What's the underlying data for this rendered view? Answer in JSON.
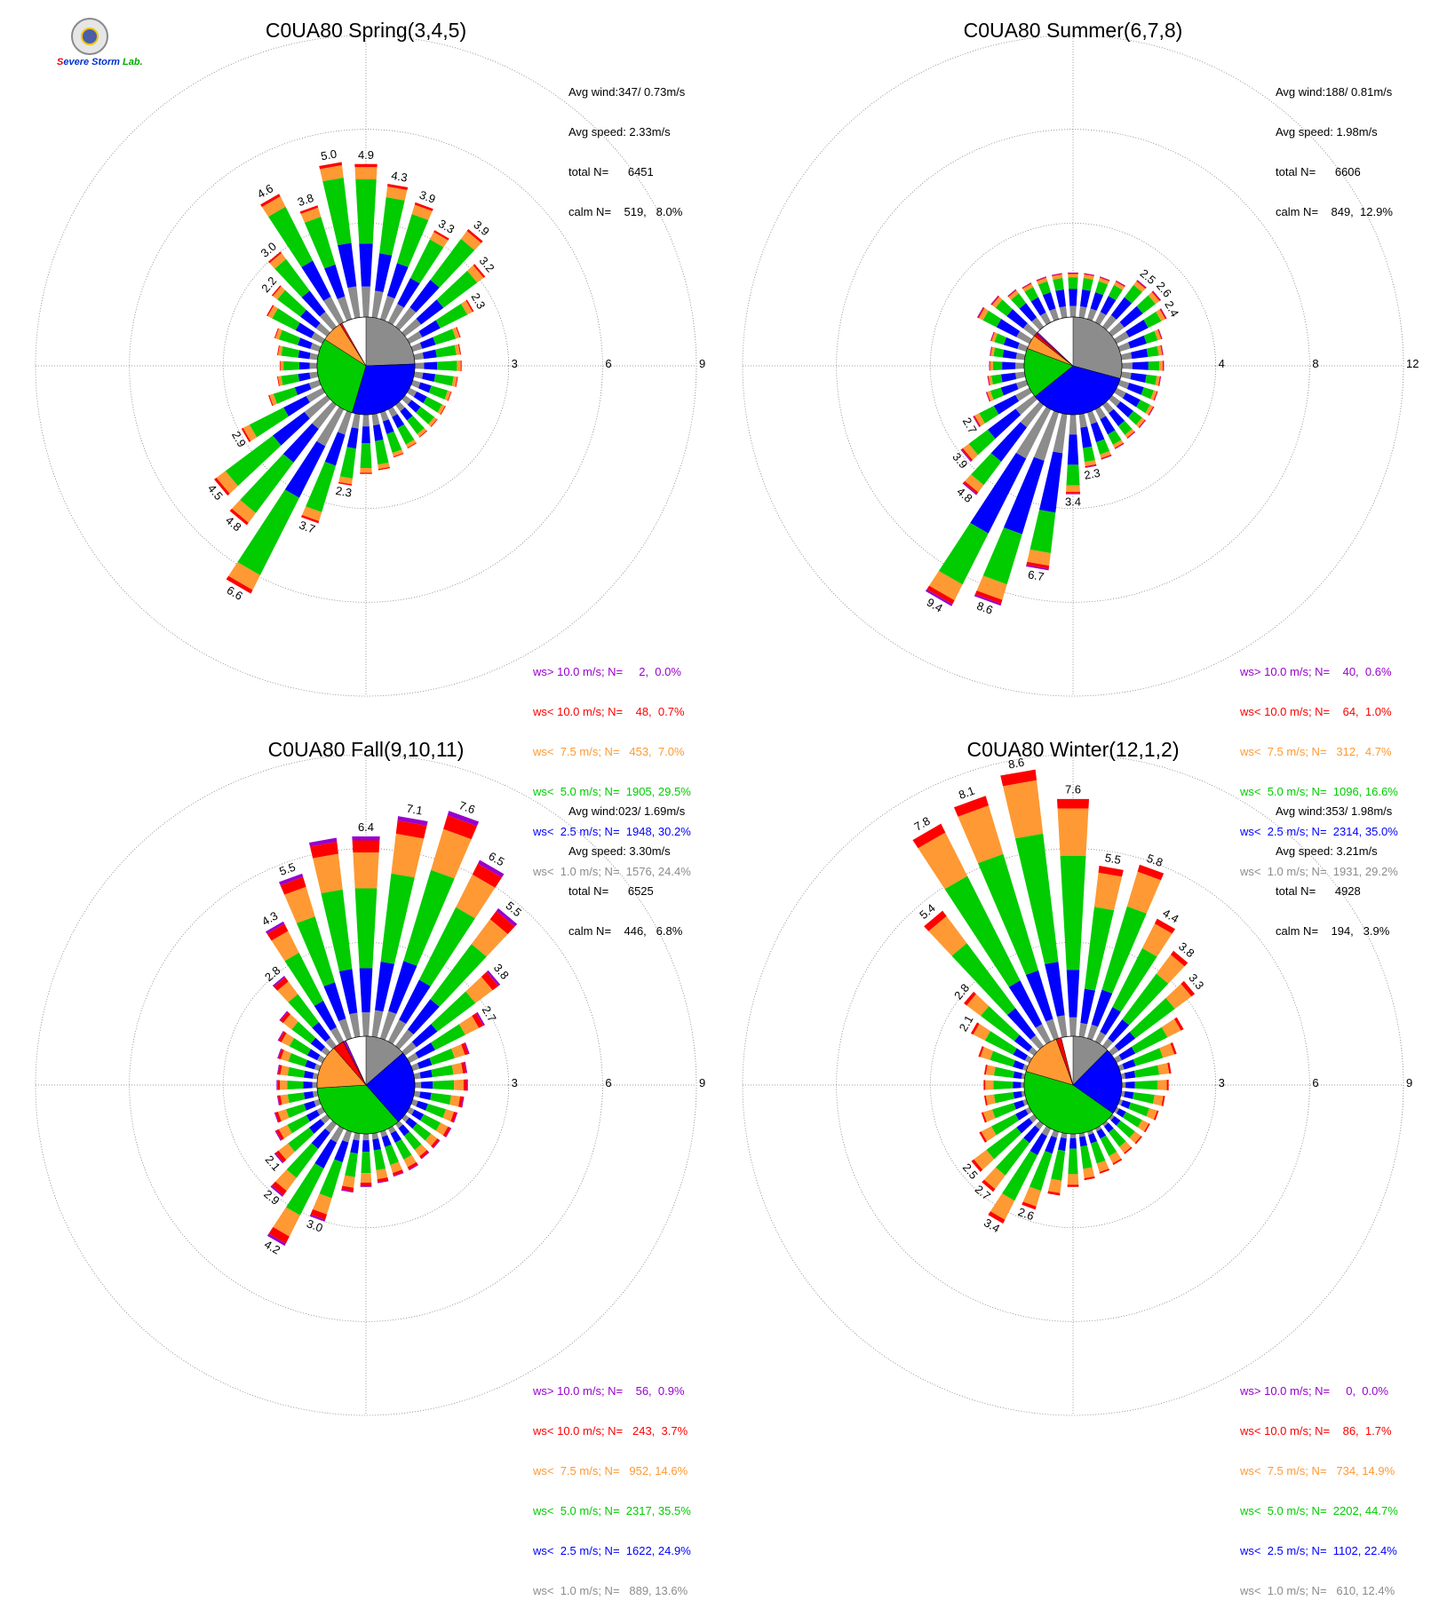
{
  "colors": {
    "bins": [
      "#8c8c8c",
      "#0000ff",
      "#00cc00",
      "#ff9933",
      "#ff0000",
      "#9900cc"
    ],
    "bin_names": [
      "gray",
      "blue",
      "green",
      "orange",
      "red",
      "purple"
    ]
  },
  "logo": {
    "text": "Severe Storm Lab."
  },
  "panels": [
    {
      "title": "C0UA80 Spring(3,4,5)",
      "stats": [
        "Avg wind:347/ 0.73m/s",
        "Avg speed: 2.33m/s",
        "total N=      6451",
        "calm N=    519,   8.0%"
      ],
      "ring_labels": [
        "3",
        "6",
        "9"
      ],
      "legend": [
        {
          "text": "ws> 10.0 m/s; N=     2,  0.0%",
          "color": "#9900cc"
        },
        {
          "text": "ws< 10.0 m/s; N=    48,  0.7%",
          "color": "#ff0000"
        },
        {
          "text": "ws<  7.5 m/s; N=   453,  7.0%",
          "color": "#ff9933"
        },
        {
          "text": "ws<  5.0 m/s; N=  1905, 29.5%",
          "color": "#00cc00"
        },
        {
          "text": "ws<  2.5 m/s; N=  1948, 30.2%",
          "color": "#0000ff"
        },
        {
          "text": "ws<  1.0 m/s; N=  1576, 24.4%",
          "color": "#8c8c8c"
        }
      ]
    },
    {
      "title": "C0UA80 Summer(6,7,8)",
      "stats": [
        "Avg wind:188/ 0.81m/s",
        "Avg speed: 1.98m/s",
        "total N=      6606",
        "calm N=    849,  12.9%"
      ],
      "ring_labels": [
        "4",
        "8",
        "12"
      ],
      "legend": [
        {
          "text": "ws> 10.0 m/s; N=    40,  0.6%",
          "color": "#9900cc"
        },
        {
          "text": "ws< 10.0 m/s; N=    64,  1.0%",
          "color": "#ff0000"
        },
        {
          "text": "ws<  7.5 m/s; N=   312,  4.7%",
          "color": "#ff9933"
        },
        {
          "text": "ws<  5.0 m/s; N=  1096, 16.6%",
          "color": "#00cc00"
        },
        {
          "text": "ws<  2.5 m/s; N=  2314, 35.0%",
          "color": "#0000ff"
        },
        {
          "text": "ws<  1.0 m/s; N=  1931, 29.2%",
          "color": "#8c8c8c"
        }
      ]
    },
    {
      "title": "C0UA80 Fall(9,10,11)",
      "stats": [
        "Avg wind:023/ 1.69m/s",
        "Avg speed: 3.30m/s",
        "total N=      6525",
        "calm N=    446,   6.8%"
      ],
      "ring_labels": [
        "3",
        "6",
        "9"
      ],
      "legend": [
        {
          "text": "ws> 10.0 m/s; N=    56,  0.9%",
          "color": "#9900cc"
        },
        {
          "text": "ws< 10.0 m/s; N=   243,  3.7%",
          "color": "#ff0000"
        },
        {
          "text": "ws<  7.5 m/s; N=   952, 14.6%",
          "color": "#ff9933"
        },
        {
          "text": "ws<  5.0 m/s; N=  2317, 35.5%",
          "color": "#00cc00"
        },
        {
          "text": "ws<  2.5 m/s; N=  1622, 24.9%",
          "color": "#0000ff"
        },
        {
          "text": "ws<  1.0 m/s; N=   889, 13.6%",
          "color": "#8c8c8c"
        }
      ]
    },
    {
      "title": "C0UA80 Winter(12,1,2)",
      "stats": [
        "Avg wind:353/ 1.98m/s",
        "Avg speed: 3.21m/s",
        "total N=      4928",
        "calm N=    194,   3.9%"
      ],
      "ring_labels": [
        "3",
        "6",
        "9"
      ],
      "legend": [
        {
          "text": "ws> 10.0 m/s; N=     0,  0.0%",
          "color": "#9900cc"
        },
        {
          "text": "ws< 10.0 m/s; N=    86,  1.7%",
          "color": "#ff0000"
        },
        {
          "text": "ws<  7.5 m/s; N=   734, 14.9%",
          "color": "#ff9933"
        },
        {
          "text": "ws<  5.0 m/s; N=  2202, 44.7%",
          "color": "#00cc00"
        },
        {
          "text": "ws<  2.5 m/s; N=  1102, 22.4%",
          "color": "#0000ff"
        },
        {
          "text": "ws<  1.0 m/s; N=   610, 12.4%",
          "color": "#8c8c8c"
        }
      ]
    }
  ],
  "chart_data": [
    {
      "type": "wind-rose",
      "title": "C0UA80 Spring(3,4,5)",
      "rmax": 9,
      "rings": [
        3,
        6,
        9
      ],
      "sector_width_deg": 10,
      "sector_dirs_deg": [
        0,
        10,
        20,
        30,
        40,
        50,
        60,
        70,
        80,
        90,
        100,
        110,
        120,
        130,
        140,
        150,
        160,
        170,
        180,
        190,
        200,
        210,
        220,
        230,
        240,
        250,
        260,
        270,
        280,
        290,
        300,
        310,
        320,
        330,
        340,
        350
      ],
      "sector_totals": [
        4.9,
        4.3,
        3.9,
        3.3,
        3.9,
        3.2,
        2.3,
        1.6,
        1.5,
        1.5,
        1.4,
        1.3,
        1.3,
        1.3,
        1.3,
        1.4,
        1.5,
        1.8,
        1.9,
        2.3,
        3.7,
        6.6,
        4.8,
        4.5,
        2.9,
        1.7,
        1.3,
        1.2,
        1.3,
        1.5,
        2.0,
        2.2,
        3.0,
        4.6,
        3.8,
        5.0
      ],
      "sector_labels": [
        "4.9",
        "4.3",
        "3.9",
        "3.3",
        "3.9",
        "3.2",
        "2.3",
        "",
        "",
        "",
        "",
        "",
        "",
        "",
        "",
        "",
        "",
        "",
        "",
        "2.3",
        "3.7",
        "6.6",
        "4.8",
        "4.5",
        "2.9",
        "",
        "",
        "",
        "",
        "",
        "",
        "2.2",
        "3.0",
        "4.6",
        "3.8",
        "5.0"
      ],
      "bin_fractions": [
        0.2,
        0.28,
        0.42,
        0.08,
        0.02,
        0.0
      ],
      "pie_fractions": [
        24.4,
        30.2,
        29.5,
        7.0,
        0.7,
        0.0
      ]
    },
    {
      "type": "wind-rose",
      "title": "C0UA80 Summer(6,7,8)",
      "rmax": 12,
      "rings": [
        4,
        8,
        12
      ],
      "sector_width_deg": 10,
      "sector_dirs_deg": [
        0,
        10,
        20,
        30,
        40,
        50,
        60,
        70,
        80,
        90,
        100,
        110,
        120,
        130,
        140,
        150,
        160,
        170,
        180,
        190,
        200,
        210,
        220,
        230,
        240,
        250,
        260,
        270,
        280,
        290,
        300,
        310,
        320,
        330,
        340,
        350
      ],
      "sector_totals": [
        1.9,
        1.9,
        1.9,
        2.0,
        2.5,
        2.6,
        2.4,
        1.9,
        1.8,
        1.8,
        1.7,
        1.7,
        1.8,
        1.8,
        1.8,
        1.9,
        2.1,
        2.3,
        3.4,
        6.7,
        8.6,
        9.4,
        4.8,
        3.9,
        2.7,
        1.8,
        1.6,
        1.5,
        1.5,
        1.6,
        2.5,
        2.3,
        2.0,
        1.9,
        1.9,
        1.9
      ],
      "sector_labels": [
        "",
        "",
        "",
        "",
        "2.5",
        "2.6",
        "2.4",
        "",
        "",
        "",
        "",
        "",
        "",
        "",
        "",
        "",
        "",
        "2.3",
        "3.4",
        "6.7",
        "8.6",
        "9.4",
        "4.8",
        "3.9",
        "2.7",
        "",
        "",
        "",
        "",
        "",
        "",
        "",
        "",
        "",
        "",
        ""
      ],
      "bin_fractions": [
        0.25,
        0.38,
        0.26,
        0.08,
        0.02,
        0.01
      ],
      "pie_fractions": [
        29.2,
        35.0,
        16.6,
        4.7,
        1.0,
        0.6
      ]
    },
    {
      "type": "wind-rose",
      "title": "C0UA80 Fall(9,10,11)",
      "rmax": 9,
      "rings": [
        3,
        6,
        9
      ],
      "sector_width_deg": 10,
      "sector_dirs_deg": [
        0,
        10,
        20,
        30,
        40,
        50,
        60,
        70,
        80,
        90,
        100,
        110,
        120,
        130,
        140,
        150,
        160,
        170,
        180,
        190,
        200,
        210,
        220,
        230,
        240,
        250,
        260,
        270,
        280,
        290,
        300,
        310,
        320,
        330,
        340,
        350
      ],
      "sector_totals": [
        6.4,
        7.1,
        7.6,
        6.5,
        5.5,
        3.8,
        2.7,
        1.9,
        1.7,
        1.7,
        1.6,
        1.5,
        1.5,
        1.4,
        1.4,
        1.5,
        1.5,
        1.6,
        1.7,
        1.9,
        3.0,
        4.2,
        2.9,
        2.1,
        1.7,
        1.5,
        1.3,
        1.3,
        1.3,
        1.4,
        1.6,
        1.9,
        2.8,
        4.3,
        5.5,
        6.4
      ],
      "sector_labels": [
        "6.4",
        "7.1",
        "7.6",
        "6.5",
        "5.5",
        "3.8",
        "2.7",
        "",
        "",
        "",
        "",
        "",
        "",
        "",
        "",
        "",
        "",
        "",
        "",
        "",
        "3.0",
        "4.2",
        "2.9",
        "2.1",
        "",
        "",
        "",
        "",
        "",
        "",
        "",
        "",
        "2.8",
        "4.3",
        "5.5",
        ""
      ],
      "bin_fractions": [
        0.12,
        0.22,
        0.4,
        0.18,
        0.06,
        0.02
      ],
      "pie_fractions": [
        13.6,
        24.9,
        35.5,
        14.6,
        3.7,
        0.9
      ]
    },
    {
      "type": "wind-rose",
      "title": "C0UA80 Winter(12,1,2)",
      "rmax": 9,
      "rings": [
        3,
        6,
        9
      ],
      "sector_width_deg": 10,
      "sector_dirs_deg": [
        0,
        10,
        20,
        30,
        40,
        50,
        60,
        70,
        80,
        90,
        100,
        110,
        120,
        130,
        140,
        150,
        160,
        170,
        180,
        190,
        200,
        210,
        220,
        230,
        240,
        250,
        260,
        270,
        280,
        290,
        300,
        310,
        320,
        330,
        340,
        350
      ],
      "sector_totals": [
        7.6,
        5.5,
        5.8,
        4.4,
        3.8,
        3.3,
        2.4,
        1.9,
        1.6,
        1.5,
        1.4,
        1.3,
        1.2,
        1.2,
        1.2,
        1.3,
        1.4,
        1.5,
        1.7,
        2.0,
        2.6,
        3.4,
        2.7,
        2.5,
        1.8,
        1.5,
        1.3,
        1.3,
        1.3,
        1.6,
        2.1,
        2.8,
        5.4,
        7.8,
        8.1,
        8.6
      ],
      "sector_labels": [
        "7.6",
        "5.5",
        "5.8",
        "4.4",
        "3.8",
        "3.3",
        "",
        "",
        "",
        "",
        "",
        "",
        "",
        "",
        "",
        "",
        "",
        "",
        "",
        "",
        "2.6",
        "3.4",
        "2.7",
        "2.5",
        "",
        "",
        "",
        "",
        "",
        "",
        "2.1",
        "2.8",
        "5.4",
        "7.8",
        "8.1",
        "8.6"
      ],
      "bin_fractions": [
        0.08,
        0.2,
        0.48,
        0.2,
        0.04,
        0.0
      ],
      "pie_fractions": [
        12.4,
        22.4,
        44.7,
        14.9,
        1.7,
        0.0
      ]
    }
  ]
}
